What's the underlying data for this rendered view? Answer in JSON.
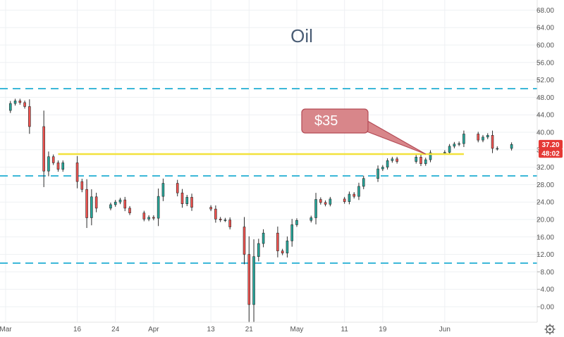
{
  "chart_data": {
    "type": "candlestick",
    "title": "Oil",
    "xlabel": "",
    "ylabel": "",
    "ylim": [
      0,
      70
    ],
    "yticks": [
      "0.00",
      "4.00",
      "8.00",
      "12.00",
      "16.00",
      "20.00",
      "24.00",
      "28.00",
      "32.00",
      "36.00",
      "40.00",
      "44.00",
      "48.00",
      "52.00",
      "56.00",
      "60.00",
      "64.00",
      "68.00"
    ],
    "xticks": [
      {
        "label": "Mar",
        "date": "2020-03-01"
      },
      {
        "label": "16",
        "date": "2020-03-16"
      },
      {
        "label": "24",
        "date": "2020-03-24"
      },
      {
        "label": "Apr",
        "date": "2020-04-01"
      },
      {
        "label": "13",
        "date": "2020-04-13"
      },
      {
        "label": "21",
        "date": "2020-04-21"
      },
      {
        "label": "May",
        "date": "2020-05-01"
      },
      {
        "label": "11",
        "date": "2020-05-11"
      },
      {
        "label": "19",
        "date": "2020-05-19"
      },
      {
        "label": "Jun",
        "date": "2020-06-01"
      }
    ],
    "grid": true,
    "close_series": [
      [
        "2020-02-26",
        48.7
      ],
      [
        "2020-02-27",
        47.1
      ],
      [
        "2020-02-28",
        45.0
      ],
      [
        "2020-03-02",
        46.6
      ],
      [
        "2020-03-03",
        47.2
      ],
      [
        "2020-03-04",
        46.8
      ],
      [
        "2020-03-05",
        45.9
      ],
      [
        "2020-03-06",
        41.3
      ],
      [
        "2020-03-09",
        31.1
      ],
      [
        "2020-03-10",
        34.4
      ],
      [
        "2020-03-11",
        33.0
      ],
      [
        "2020-03-12",
        31.5
      ],
      [
        "2020-03-13",
        33.0
      ],
      [
        "2020-03-16",
        28.7
      ],
      [
        "2020-03-17",
        26.9
      ],
      [
        "2020-03-18",
        20.4
      ],
      [
        "2020-03-19",
        25.2
      ],
      [
        "2020-03-20",
        22.6
      ],
      [
        "2020-03-23",
        23.4
      ],
      [
        "2020-03-24",
        24.0
      ],
      [
        "2020-03-25",
        24.5
      ],
      [
        "2020-03-26",
        22.6
      ],
      [
        "2020-03-27",
        21.5
      ],
      [
        "2020-03-30",
        20.1
      ],
      [
        "2020-03-31",
        20.5
      ],
      [
        "2020-04-01",
        20.3
      ],
      [
        "2020-04-02",
        25.3
      ],
      [
        "2020-04-03",
        28.3
      ],
      [
        "2020-04-06",
        26.1
      ],
      [
        "2020-04-07",
        23.6
      ],
      [
        "2020-04-08",
        25.1
      ],
      [
        "2020-04-09",
        22.8
      ],
      [
        "2020-04-13",
        22.4
      ],
      [
        "2020-04-14",
        20.1
      ],
      [
        "2020-04-15",
        19.9
      ],
      [
        "2020-04-16",
        19.9
      ],
      [
        "2020-04-17",
        18.3
      ],
      [
        "2020-04-20",
        12.0
      ],
      [
        "2020-04-21",
        0.5
      ],
      [
        "2020-04-22",
        11.5
      ],
      [
        "2020-04-23",
        14.5
      ],
      [
        "2020-04-24",
        16.9
      ],
      [
        "2020-04-27",
        12.8
      ],
      [
        "2020-04-28",
        12.3
      ],
      [
        "2020-04-29",
        15.1
      ],
      [
        "2020-04-30",
        18.8
      ],
      [
        "2020-05-01",
        19.8
      ],
      [
        "2020-05-04",
        20.4
      ],
      [
        "2020-05-05",
        24.6
      ],
      [
        "2020-05-06",
        23.9
      ],
      [
        "2020-05-07",
        23.5
      ],
      [
        "2020-05-08",
        24.7
      ],
      [
        "2020-05-11",
        24.1
      ],
      [
        "2020-05-12",
        25.8
      ],
      [
        "2020-05-13",
        25.3
      ],
      [
        "2020-05-14",
        27.6
      ],
      [
        "2020-05-15",
        29.4
      ],
      [
        "2020-05-18",
        31.6
      ],
      [
        "2020-05-19",
        32.0
      ],
      [
        "2020-05-20",
        33.5
      ],
      [
        "2020-05-21",
        33.9
      ],
      [
        "2020-05-22",
        33.3
      ],
      [
        "2020-05-26",
        34.3
      ],
      [
        "2020-05-27",
        32.8
      ],
      [
        "2020-05-28",
        33.7
      ],
      [
        "2020-05-29",
        35.3
      ],
      [
        "2020-06-01",
        35.4
      ],
      [
        "2020-06-02",
        36.8
      ],
      [
        "2020-06-03",
        37.3
      ],
      [
        "2020-06-04",
        37.4
      ],
      [
        "2020-06-05",
        39.6
      ],
      [
        "2020-06-08",
        38.2
      ],
      [
        "2020-06-09",
        38.9
      ],
      [
        "2020-06-10",
        39.3
      ],
      [
        "2020-06-11",
        36.3
      ],
      [
        "2020-06-12",
        36.3
      ],
      [
        "2020-06-15",
        37.2
      ]
    ],
    "horizontal_levels": [
      {
        "value": 50.0,
        "style": "dashed",
        "color": "#3cb8d8"
      },
      {
        "value": 30.0,
        "style": "dashed",
        "color": "#3cb8d8"
      },
      {
        "value": 10.0,
        "style": "dashed",
        "color": "#3cb8d8"
      }
    ],
    "trendline": {
      "from": {
        "date": "2020-03-12",
        "value": 35.0
      },
      "to": {
        "date": "2020-06-05",
        "value": 35.0
      },
      "color": "#f2e23c"
    },
    "annotation": {
      "text": "$35",
      "points_to": {
        "date": "2020-05-28",
        "value": 35.0
      }
    },
    "price_labels": [
      {
        "text": "37.20",
        "value": 37.2
      },
      {
        "text": "48:02",
        "value": 35.2
      }
    ],
    "colors": {
      "up": "#26a69a",
      "down": "#ef5350",
      "bar": "#2b2b2b",
      "callout": "#d8868a",
      "callout_border": "#b34a55",
      "label_bg": "#e53935",
      "trendline": "#f2e23c",
      "levels": "#3cb8d8"
    }
  },
  "settings_icon": "gear-icon"
}
